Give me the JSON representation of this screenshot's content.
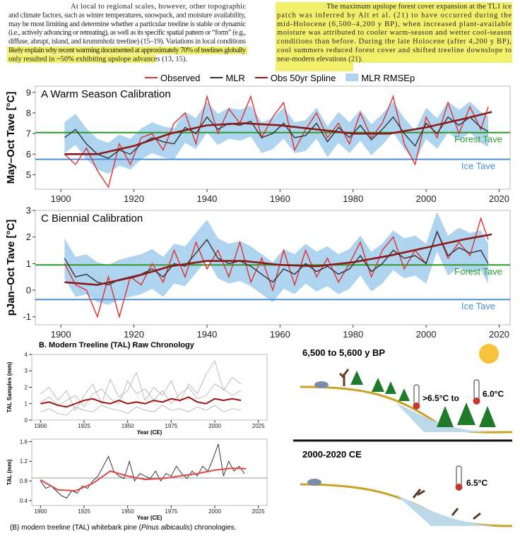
{
  "text": {
    "left": [
      "At local to regional scales, however, other topographic",
      "and climate factors, such as winter temperatures, snowpack, and moisture availability,",
      "may be most limiting and determine whether a particular treeline is stable or dynamic",
      "(i.e., actively advancing or retreating), as well as its specific spatial pattern or “form” (e.g.,",
      "diffuse, abrupt, island, and krummholz treeline) (15–19). Variations in local conditions",
      "likely explain why recent warming documented at approximately 70% of treelines globally",
      "only resulted in ~50% exhibiting upslope advances (13, 15)."
    ],
    "right": [
      "The maximum upslope forest cover expansion at the TL1 ice",
      "patch was inferred by Alt et al. (21) to have occurred during the",
      "mid-Holocene (6,500–4,200 y BP), when increased plant-available",
      "moisture was attributed to cooler warm-season and wetter cool-season",
      "conditions than before. During the late Holocene (after 4,200 y BP),",
      "cool summers reduced forest cover and shifted treeline downslope to",
      "near-modern elevations (21)."
    ]
  },
  "chart_data": [
    {
      "type": "line",
      "title": "A  Warm Season Calibration",
      "y_label": "May–Oct Tave [°C]",
      "xlim": [
        1893,
        2023
      ],
      "xticks": [
        1900,
        1920,
        1940,
        1960,
        1980,
        2000,
        2020
      ],
      "ylim": [
        4.3,
        9.3
      ],
      "yticks": [
        5,
        6,
        7,
        8,
        9
      ],
      "series": [
        {
          "name": "Observed",
          "color": "#e03030",
          "x": [
            1901,
            1904,
            1907,
            1910,
            1913,
            1916,
            1919,
            1922,
            1925,
            1928,
            1931,
            1934,
            1937,
            1940,
            1943,
            1946,
            1949,
            1952,
            1955,
            1958,
            1961,
            1964,
            1967,
            1970,
            1973,
            1976,
            1979,
            1982,
            1985,
            1988,
            1991,
            1994,
            1997,
            2000,
            2003,
            2006,
            2009,
            2012,
            2015,
            2017
          ],
          "values": [
            6.0,
            5.5,
            6.3,
            5.2,
            4.4,
            6.5,
            5.5,
            6.8,
            7.0,
            6.2,
            7.5,
            8.0,
            6.5,
            8.8,
            7.0,
            8.2,
            7.5,
            8.8,
            6.8,
            7.8,
            8.5,
            6.2,
            7.2,
            8.0,
            6.8,
            7.5,
            6.5,
            8.0,
            6.8,
            7.5,
            8.8,
            6.5,
            5.5,
            7.8,
            6.8,
            8.5,
            7.0,
            8.3,
            7.2,
            8.3
          ]
        },
        {
          "name": "MLR",
          "color": "#333333",
          "x": [
            1901,
            1904,
            1907,
            1910,
            1913,
            1916,
            1919,
            1922,
            1925,
            1928,
            1931,
            1934,
            1937,
            1940,
            1943,
            1946,
            1949,
            1952,
            1955,
            1958,
            1961,
            1964,
            1967,
            1970,
            1973,
            1976,
            1979,
            1982,
            1985,
            1988,
            1991,
            1994,
            1997,
            2000,
            2003,
            2006,
            2009,
            2012,
            2015,
            2017
          ],
          "values": [
            6.8,
            7.2,
            6.5,
            6.0,
            5.8,
            6.2,
            6.0,
            6.5,
            6.8,
            6.6,
            6.5,
            7.3,
            7.0,
            7.8,
            7.2,
            7.5,
            7.4,
            7.6,
            6.8,
            7.0,
            7.5,
            6.8,
            6.9,
            7.5,
            6.6,
            7.3,
            6.8,
            7.4,
            6.7,
            7.2,
            7.8,
            7.0,
            6.4,
            7.5,
            7.0,
            7.8,
            7.4,
            7.8,
            7.3,
            7.1
          ]
        },
        {
          "name": "Obs 50yr Spline",
          "color": "#8b1a1a",
          "x": [
            1901,
            1910,
            1920,
            1930,
            1940,
            1950,
            1960,
            1970,
            1980,
            1990,
            2000,
            2010,
            2018
          ],
          "values": [
            6.0,
            6.0,
            6.4,
            7.0,
            7.4,
            7.5,
            7.4,
            7.2,
            7.0,
            7.0,
            7.3,
            7.7,
            8.05
          ]
        },
        {
          "name": "MLR RMSEp",
          "color": "#aed4f0",
          "error": 0.75
        }
      ],
      "reference_lines": [
        {
          "label": "Forest Tave",
          "value": 7.05,
          "color": "#2e9a2e"
        },
        {
          "label": "Ice Tave",
          "value": 5.75,
          "color": "#4a90d9"
        }
      ]
    },
    {
      "type": "line",
      "title": "C  Biennial Calibration",
      "y_label": "pJan–Oct Tave [°C]",
      "xlim": [
        1893,
        2023
      ],
      "xticks": [
        1900,
        1920,
        1940,
        1960,
        1980,
        2000,
        2020
      ],
      "ylim": [
        -1.3,
        3
      ],
      "yticks": [
        -1,
        0,
        1,
        2,
        3
      ],
      "series": [
        {
          "name": "Observed",
          "color": "#e03030",
          "x": [
            1901,
            1904,
            1907,
            1910,
            1913,
            1916,
            1919,
            1922,
            1925,
            1928,
            1931,
            1934,
            1937,
            1940,
            1943,
            1946,
            1949,
            1952,
            1955,
            1958,
            1961,
            1964,
            1967,
            1970,
            1973,
            1976,
            1979,
            1982,
            1985,
            1988,
            1991,
            1994,
            1997,
            2000,
            2003,
            2006,
            2009,
            2012,
            2015,
            2017
          ],
          "values": [
            1.0,
            0.2,
            0.0,
            -1.0,
            0.5,
            -1.0,
            0.5,
            0.2,
            1.0,
            0.3,
            1.5,
            0.5,
            1.8,
            0.8,
            1.5,
            0.5,
            1.8,
            0.3,
            1.2,
            0.0,
            1.5,
            0.2,
            1.5,
            0.5,
            1.2,
            0.3,
            1.0,
            1.8,
            0.5,
            1.5,
            2.0,
            0.8,
            1.5,
            1.0,
            2.2,
            1.2,
            1.8,
            1.3,
            2.7,
            1.9
          ]
        },
        {
          "name": "MLR",
          "color": "#333333",
          "x": [
            1901,
            1904,
            1907,
            1910,
            1913,
            1916,
            1919,
            1922,
            1925,
            1928,
            1931,
            1934,
            1937,
            1940,
            1943,
            1946,
            1949,
            1952,
            1955,
            1958,
            1961,
            1964,
            1967,
            1970,
            1973,
            1976,
            1979,
            1982,
            1985,
            1988,
            1991,
            1994,
            1997,
            2000,
            2003,
            2006,
            2009,
            2012,
            2015,
            2017
          ],
          "values": [
            1.2,
            0.5,
            0.6,
            0.3,
            0.2,
            0.4,
            0.5,
            0.6,
            0.8,
            0.5,
            1.0,
            0.9,
            1.4,
            1.9,
            1.2,
            1.0,
            1.1,
            0.9,
            0.6,
            0.3,
            0.8,
            0.6,
            1.0,
            0.7,
            0.9,
            0.6,
            0.8,
            1.3,
            0.7,
            1.0,
            1.5,
            1.2,
            1.3,
            1.0,
            2.2,
            1.3,
            1.6,
            1.4,
            1.5,
            1.0
          ]
        },
        {
          "name": "Obs 50yr Spline",
          "color": "#8b1a1a",
          "x": [
            1901,
            1910,
            1920,
            1930,
            1940,
            1950,
            1960,
            1970,
            1980,
            1990,
            2000,
            2010,
            2018
          ],
          "values": [
            0.3,
            0.2,
            0.5,
            0.9,
            1.1,
            1.1,
            0.95,
            0.9,
            1.05,
            1.3,
            1.6,
            1.9,
            2.1
          ]
        },
        {
          "name": "MLR RMSEp",
          "color": "#aed4f0",
          "error": 0.75
        }
      ],
      "reference_lines": [
        {
          "label": "Forest Tave",
          "value": 0.95,
          "color": "#2e9a2e"
        },
        {
          "label": "Ice Tave",
          "value": -0.35,
          "color": "#4a90d9"
        }
      ]
    },
    {
      "type": "line",
      "title": "B. Modern Treeline (TAL) Raw Chronology",
      "y_label": "TAL Samples (mm)",
      "x_label": "Year (CE)",
      "xlim": [
        1895,
        2030
      ],
      "xticks": [
        1900,
        1925,
        1950,
        1975,
        2000,
        2025
      ],
      "ylim": [
        0,
        4
      ],
      "yticks": [
        0,
        1,
        2,
        3,
        4
      ],
      "series": [
        {
          "color": "#b5b5b5",
          "x": [
            1900,
            1905,
            1910,
            1915,
            1920,
            1925,
            1930,
            1935,
            1940,
            1945,
            1950,
            1955,
            1960,
            1965,
            1970,
            1975,
            1980,
            1985,
            1990,
            1995,
            2000,
            2005,
            2010,
            2015
          ],
          "values": [
            1.6,
            2.0,
            1.2,
            1.8,
            0.6,
            1.5,
            2.2,
            1.0,
            2.5,
            1.4,
            1.8,
            2.9,
            1.2,
            2.0,
            1.5,
            2.4,
            1.1,
            2.2,
            1.6,
            2.8,
            3.6,
            1.8,
            2.6,
            2.2
          ]
        },
        {
          "color": "#b5b5b5",
          "x": [
            1900,
            1905,
            1910,
            1915,
            1920,
            1925,
            1930,
            1935,
            1940,
            1945,
            1950,
            1955,
            1960,
            1965,
            1970,
            1975,
            1980,
            1985,
            1990,
            1995,
            2000,
            2005,
            2010,
            2015
          ],
          "values": [
            0.5,
            0.7,
            0.4,
            0.3,
            0.8,
            0.6,
            0.5,
            0.9,
            0.7,
            0.6,
            0.4,
            0.8,
            0.6,
            0.5,
            0.9,
            0.6,
            0.7,
            0.5,
            0.8,
            0.6,
            0.9,
            0.5,
            0.7,
            0.6
          ]
        },
        {
          "color": "#b5b5b5",
          "x": [
            1900,
            1905,
            1910,
            1915,
            1920,
            1925,
            1930,
            1935,
            1940,
            1945,
            1950,
            1955,
            1960,
            1965,
            1970,
            1975,
            1980,
            1985,
            1990,
            1995,
            2000,
            2005,
            2010,
            2015
          ],
          "values": [
            1.1,
            1.4,
            0.9,
            1.2,
            1.5,
            0.8,
            1.6,
            1.9,
            1.3,
            1.0,
            2.4,
            1.6,
            1.9,
            1.2,
            1.8,
            1.0,
            1.6,
            2.0,
            1.3,
            1.5,
            2.2,
            1.9,
            1.5,
            1.8
          ]
        },
        {
          "color": "#a01010",
          "x": [
            1900,
            1905,
            1910,
            1915,
            1920,
            1925,
            1930,
            1935,
            1940,
            1945,
            1950,
            1955,
            1960,
            1965,
            1970,
            1975,
            1980,
            1985,
            1990,
            1995,
            2000,
            2005,
            2010,
            2015
          ],
          "values": [
            1.0,
            1.1,
            0.9,
            0.8,
            1.0,
            1.2,
            1.3,
            1.1,
            1.0,
            1.2,
            1.0,
            1.1,
            1.0,
            1.2,
            1.1,
            1.3,
            1.2,
            1.4,
            1.1,
            1.0,
            1.3,
            1.2,
            1.3,
            1.2
          ]
        }
      ]
    },
    {
      "type": "line",
      "y_label": "TAL (mm)",
      "x_label": "Year (CE)",
      "xlim": [
        1895,
        2030
      ],
      "xticks": [
        1900,
        1925,
        1950,
        1975,
        2000,
        2025
      ],
      "ylim": [
        0.3,
        1.65
      ],
      "yticks": [
        0.4,
        0.8,
        1.2,
        1.6
      ],
      "series": [
        {
          "color": "#222222",
          "x": [
            1900,
            1903,
            1906,
            1909,
            1912,
            1915,
            1918,
            1921,
            1924,
            1927,
            1930,
            1933,
            1936,
            1939,
            1942,
            1945,
            1948,
            1951,
            1954,
            1957,
            1960,
            1963,
            1966,
            1969,
            1972,
            1975,
            1978,
            1981,
            1984,
            1987,
            1990,
            1993,
            1996,
            1999,
            2002,
            2005,
            2008,
            2011,
            2014,
            2017
          ],
          "values": [
            0.8,
            0.65,
            0.7,
            0.6,
            0.5,
            0.45,
            0.6,
            0.55,
            0.7,
            0.65,
            0.8,
            0.9,
            1.1,
            1.3,
            1.0,
            0.9,
            0.85,
            1.2,
            0.8,
            0.95,
            0.9,
            0.85,
            1.0,
            0.8,
            0.95,
            0.9,
            1.1,
            0.95,
            0.85,
            1.0,
            0.9,
            1.1,
            1.0,
            1.25,
            1.55,
            0.9,
            1.2,
            1.0,
            1.1,
            0.95
          ]
        },
        {
          "color": "#e04848",
          "x": [
            1900,
            1910,
            1920,
            1930,
            1940,
            1950,
            1960,
            1970,
            1980,
            1990,
            2000,
            2010,
            2018
          ],
          "values": [
            0.82,
            0.62,
            0.6,
            0.75,
            1.0,
            0.9,
            0.83,
            0.85,
            0.9,
            0.95,
            1.02,
            1.06,
            1.05
          ]
        }
      ],
      "reference_lines": [
        {
          "value": 0.86,
          "color": "#999999"
        }
      ]
    }
  ],
  "caption": [
    "(B) modern treeline (TAL) whitebark pine (",
    "Pinus albicaulis",
    ") chronologies."
  ],
  "illustration": {
    "top_period": "6,500 to 5,600 y BP",
    "top_temp_a": ">6.5°C to",
    "top_temp_b": "6.0°C",
    "bottom_period": "2000-2020 CE",
    "bottom_temp": "6.5°C"
  }
}
